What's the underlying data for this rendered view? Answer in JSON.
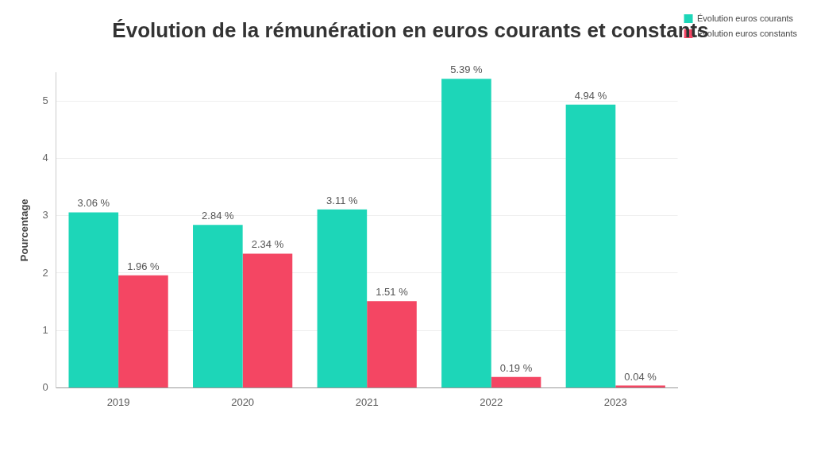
{
  "chart_data": {
    "type": "bar",
    "title": "Évolution de la rémunération en euros courants et constants",
    "y_label": "Pourcentage",
    "categories": [
      "2019",
      "2020",
      "2021",
      "2022",
      "2023"
    ],
    "series": [
      {
        "name": "Évolution euros courants",
        "color": "#1dd6b8",
        "values": [
          3.06,
          2.84,
          3.11,
          5.39,
          4.94
        ],
        "value_labels": [
          "3.06 %",
          "2.84 %",
          "3.11 %",
          "5.39 %",
          "4.94 %"
        ]
      },
      {
        "name": "Évolution euros constants",
        "color": "#f44663",
        "values": [
          1.96,
          2.34,
          1.51,
          0.19,
          0.04
        ],
        "value_labels": [
          "1.96 %",
          "2.34 %",
          "1.51 %",
          "0.19 %",
          "0.04 %"
        ]
      }
    ],
    "ylim": [
      0,
      5.5
    ],
    "yticks": [
      0,
      1,
      2,
      3,
      4,
      5
    ],
    "grid": true,
    "legend": "top right",
    "data_labels": true
  }
}
